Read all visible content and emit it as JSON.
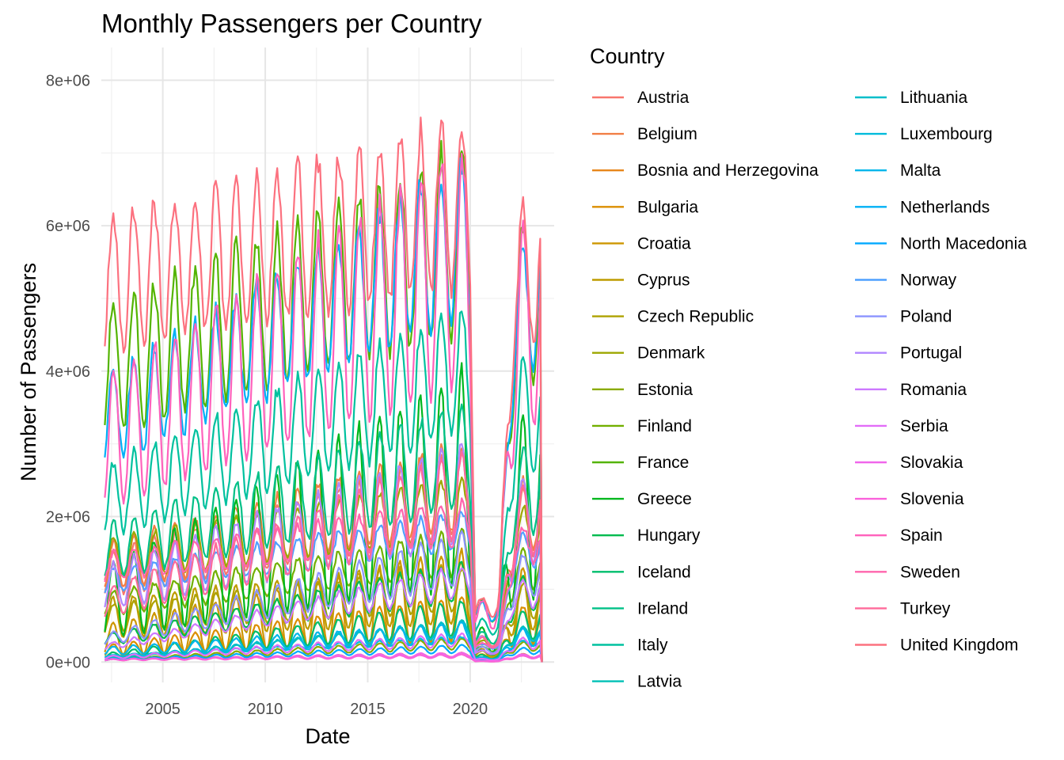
{
  "chart_data": {
    "type": "line",
    "title": "Monthly Passengers per Country",
    "xlabel": "Date",
    "ylabel": "Number of Passengers",
    "x_range": [
      "2002-01",
      "2023-06"
    ],
    "ylim": [
      0,
      8000000
    ],
    "x_ticks": [
      {
        "value": 2005,
        "label": "2005"
      },
      {
        "value": 2010,
        "label": "2010"
      },
      {
        "value": 2015,
        "label": "2015"
      },
      {
        "value": 2020,
        "label": "2020"
      }
    ],
    "y_ticks": [
      {
        "value": 0,
        "label": "0e+00"
      },
      {
        "value": 2000000,
        "label": "2e+06"
      },
      {
        "value": 4000000,
        "label": "4e+06"
      },
      {
        "value": 6000000,
        "label": "6e+06"
      },
      {
        "value": 8000000,
        "label": "8e+06"
      }
    ],
    "grid": true,
    "legend": {
      "title": "Country",
      "placement": "right",
      "columns": 2
    },
    "series": [
      {
        "name": "Austria",
        "color": "#F8766D",
        "avg_2002": 1200000,
        "avg_2019": 2300000,
        "seasonal_amplitude": 0.25
      },
      {
        "name": "Belgium",
        "color": "#F17F46",
        "avg_2002": 1300000,
        "avg_2019": 2400000,
        "seasonal_amplitude": 0.25
      },
      {
        "name": "Bosnia and Herzegovina",
        "color": "#E7861B",
        "avg_2002": 30000,
        "avg_2019": 100000,
        "seasonal_amplitude": 0.3
      },
      {
        "name": "Bulgaria",
        "color": "#DB8E00",
        "avg_2002": 150000,
        "avg_2019": 600000,
        "seasonal_amplitude": 0.5
      },
      {
        "name": "Croatia",
        "color": "#CD9600",
        "avg_2002": 300000,
        "avg_2019": 900000,
        "seasonal_amplitude": 0.7
      },
      {
        "name": "Cyprus",
        "color": "#BE9C00",
        "avg_2002": 600000,
        "avg_2019": 950000,
        "seasonal_amplitude": 0.45
      },
      {
        "name": "Czech Republic",
        "color": "#AEA200",
        "avg_2002": 600000,
        "avg_2019": 1000000,
        "seasonal_amplitude": 0.3
      },
      {
        "name": "Denmark",
        "color": "#9DA700",
        "avg_2002": 1400000,
        "avg_2019": 2100000,
        "seasonal_amplitude": 0.2
      },
      {
        "name": "Estonia",
        "color": "#8AAB00",
        "avg_2002": 30000,
        "avg_2019": 250000,
        "seasonal_amplitude": 0.3
      },
      {
        "name": "Finland",
        "color": "#72B000",
        "avg_2002": 800000,
        "avg_2019": 1500000,
        "seasonal_amplitude": 0.2
      },
      {
        "name": "France",
        "color": "#53B400",
        "avg_2002": 4000000,
        "avg_2019": 5800000,
        "seasonal_amplitude": 0.22
      },
      {
        "name": "Greece",
        "color": "#00B81F",
        "avg_2002": 800000,
        "avg_2019": 2500000,
        "seasonal_amplitude": 0.6
      },
      {
        "name": "Hungary",
        "color": "#00BB4E",
        "avg_2002": 300000,
        "avg_2019": 1100000,
        "seasonal_amplitude": 0.25
      },
      {
        "name": "Iceland",
        "color": "#00BE6C",
        "avg_2002": 80000,
        "avg_2019": 600000,
        "seasonal_amplitude": 0.4
      },
      {
        "name": "Ireland",
        "color": "#00C087",
        "avg_2002": 1500000,
        "avg_2019": 2800000,
        "seasonal_amplitude": 0.25
      },
      {
        "name": "Italy",
        "color": "#00C19F",
        "avg_2002": 2200000,
        "avg_2019": 4000000,
        "seasonal_amplitude": 0.22
      },
      {
        "name": "Latvia",
        "color": "#00C0B5",
        "avg_2002": 30000,
        "avg_2019": 450000,
        "seasonal_amplitude": 0.25
      },
      {
        "name": "Lithuania",
        "color": "#00BECA",
        "avg_2002": 40000,
        "avg_2019": 450000,
        "seasonal_amplitude": 0.25
      },
      {
        "name": "Luxembourg",
        "color": "#00BBDC",
        "avg_2002": 80000,
        "avg_2019": 300000,
        "seasonal_amplitude": 0.15
      },
      {
        "name": "Malta",
        "color": "#00B6EB",
        "avg_2002": 150000,
        "avg_2019": 400000,
        "seasonal_amplitude": 0.35
      },
      {
        "name": "Netherlands",
        "color": "#00B0F6",
        "avg_2002": 3300000,
        "avg_2019": 5800000,
        "seasonal_amplitude": 0.18
      },
      {
        "name": "North Macedonia",
        "color": "#00A9FF",
        "avg_2002": 30000,
        "avg_2019": 180000,
        "seasonal_amplitude": 0.3
      },
      {
        "name": "Norway",
        "color": "#4FA0FF",
        "avg_2002": 1100000,
        "avg_2019": 1800000,
        "seasonal_amplitude": 0.15
      },
      {
        "name": "Poland",
        "color": "#8C94FF",
        "avg_2002": 300000,
        "avg_2019": 1400000,
        "seasonal_amplitude": 0.25
      },
      {
        "name": "Portugal",
        "color": "#B186FF",
        "avg_2002": 1000000,
        "avg_2019": 2300000,
        "seasonal_amplitude": 0.3
      },
      {
        "name": "Romania",
        "color": "#CD79FF",
        "avg_2002": 200000,
        "avg_2019": 1100000,
        "seasonal_amplitude": 0.2
      },
      {
        "name": "Serbia",
        "color": "#E26DF8",
        "avg_2002": 60000,
        "avg_2019": 300000,
        "seasonal_amplitude": 0.3
      },
      {
        "name": "Slovakia",
        "color": "#F066EA",
        "avg_2002": 30000,
        "avg_2019": 100000,
        "seasonal_amplitude": 0.3
      },
      {
        "name": "Slovenia",
        "color": "#FA62DB",
        "avg_2002": 30000,
        "avg_2019": 80000,
        "seasonal_amplitude": 0.3
      },
      {
        "name": "Spain",
        "color": "#FF62BC",
        "avg_2002": 3000000,
        "avg_2019": 5400000,
        "seasonal_amplitude": 0.3
      },
      {
        "name": "Sweden",
        "color": "#FF65AD",
        "avg_2002": 1300000,
        "avg_2019": 1900000,
        "seasonal_amplitude": 0.15
      },
      {
        "name": "Turkey",
        "color": "#FF6A9A",
        "avg_2002": 800000,
        "avg_2019": 2300000,
        "seasonal_amplitude": 0.25
      },
      {
        "name": "United Kingdom",
        "color": "#FC717F",
        "avg_2002": 5200000,
        "avg_2019": 6300000,
        "seasonal_amplitude": 0.18
      }
    ]
  }
}
